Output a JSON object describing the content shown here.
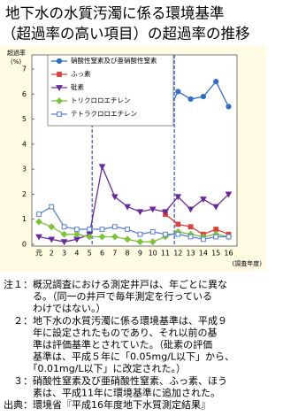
{
  "chart_data": {
    "type": "line",
    "title": [
      "地下水の水質汚濁に係る環境基準",
      "（超過率の高い項目）の超過率の推移"
    ],
    "y_label": [
      "超過率",
      "(%)"
    ],
    "x_label": "(調査年度)",
    "categories": [
      "元",
      "2",
      "3",
      "4",
      "5",
      "6",
      "7",
      "8",
      "9",
      "10",
      "11",
      "12",
      "13",
      "14",
      "15",
      "16"
    ],
    "ylim": [
      0,
      7
    ],
    "yticks": [
      0,
      1,
      2,
      3,
      4,
      5,
      6,
      7
    ],
    "series": [
      {
        "name": "硝酸性窒素及び亜硝酸性窒素",
        "color": "#2f6fc9",
        "marker": "circle",
        "values": [
          null,
          null,
          null,
          null,
          null,
          null,
          null,
          null,
          null,
          null,
          5.1,
          6.1,
          5.8,
          5.9,
          6.5,
          5.5
        ]
      },
      {
        "name": "ふっ素",
        "color": "#e0403a",
        "marker": "square",
        "values": [
          null,
          null,
          null,
          null,
          null,
          null,
          null,
          null,
          null,
          null,
          1.2,
          0.8,
          0.7,
          0.4,
          0.6,
          0.4
        ]
      },
      {
        "name": "砒素",
        "color": "#6a2a9c",
        "marker": "triangle-down",
        "values": [
          0.3,
          0.2,
          0.1,
          0.2,
          0.4,
          3.1,
          1.9,
          1.5,
          1.3,
          1.4,
          1.3,
          1.9,
          1.4,
          1.8,
          1.5,
          2.0
        ]
      },
      {
        "name": "トリクロロエチレン",
        "color": "#7cc23a",
        "marker": "diamond",
        "values": [
          0.9,
          0.7,
          0.4,
          0.4,
          0.3,
          0.3,
          0.3,
          0.2,
          0.1,
          0.1,
          0.3,
          0.5,
          0.4,
          0.3,
          0.4,
          0.3
        ]
      },
      {
        "name": "テトラクロロエチレン",
        "color": "#5a7fd0",
        "marker": "open-square",
        "values": [
          1.2,
          1.5,
          0.7,
          0.6,
          0.6,
          0.6,
          0.7,
          0.6,
          0.4,
          0.5,
          0.4,
          0.4,
          0.3,
          0.2,
          0.3,
          0.3
        ]
      }
    ]
  },
  "notes": [
    "注１：概況調査における測定井戸は、年ごとに異な",
    "　　　る。（同一の井戸で毎年測定を行っている",
    "　　　わけではない。）",
    "　２：地下水の水質汚濁に係る環境基準は、平成９",
    "　　　年に設定されたものであり、それ以前の基",
    "　　　準は評価基準とされていた。（砒素の評価",
    "　　　基準は、平成５年に「0.05mg/L以下」から、",
    "　　　「0.01mg/L以下」に改定された。）",
    "　３：硝酸性窒素及び亜硝酸性窒素、ふっ素、ほう",
    "　　　素は、平成11年に環境基準に追加された。",
    "出典：環境省『平成16年度地下水質測定結果』"
  ]
}
